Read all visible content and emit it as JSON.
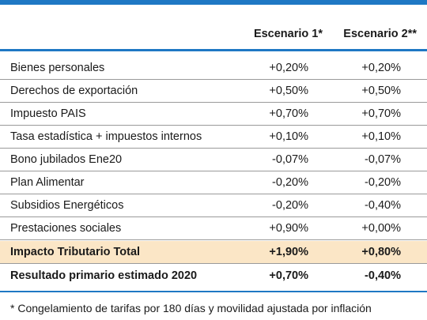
{
  "colors": {
    "accent": "#1f78c4",
    "highlight_row": "#fbe6c6"
  },
  "header": {
    "col1": "Escenario 1*",
    "col2": "Escenario 2**"
  },
  "rows": [
    {
      "label": "Bienes personales",
      "s1": "+0,20%",
      "s2": "+0,20%"
    },
    {
      "label": "Derechos de exportación",
      "s1": "+0,50%",
      "s2": "+0,50%"
    },
    {
      "label": "Impuesto PAIS",
      "s1": "+0,70%",
      "s2": "+0,70%"
    },
    {
      "label": "Tasa estadística + impuestos internos",
      "s1": "+0,10%",
      "s2": "+0,10%"
    },
    {
      "label": "Bono jubilados Ene20",
      "s1": "-0,07%",
      "s2": "-0,07%"
    },
    {
      "label": "Plan Alimentar",
      "s1": "-0,20%",
      "s2": "-0,20%"
    },
    {
      "label": "Subsidios Energéticos",
      "s1": "-0,20%",
      "s2": "-0,40%"
    },
    {
      "label": "Prestaciones sociales",
      "s1": "+0,90%",
      "s2": "+0,00%"
    }
  ],
  "total": {
    "label": "Impacto Tributario Total",
    "s1": "+1,90%",
    "s2": "+0,80%"
  },
  "result": {
    "label": "Resultado primario estimado 2020",
    "s1": "+0,70%",
    "s2": "-0,40%"
  },
  "footnote": "* Congelamiento de tarifas por 180 días y movilidad ajustada por inflación"
}
